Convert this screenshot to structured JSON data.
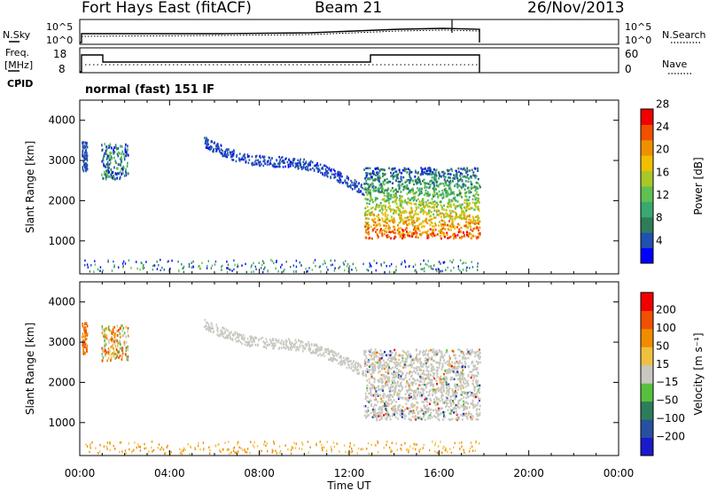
{
  "header": {
    "station": "Fort Hays East (fitACF)",
    "beam": "Beam 21",
    "date": "26/Nov/2013"
  },
  "noise_panel": {
    "left_label": "N.Sky",
    "right_label": "N.Search",
    "left_ticks": [
      "10^5",
      "10^0"
    ],
    "right_ticks": [
      "10^5",
      "10^0"
    ]
  },
  "freq_panel": {
    "left_label_line1": "Freq.",
    "left_label_line2": "[MHz]",
    "right_label": "Nave",
    "left_ticks": [
      "18",
      "8"
    ],
    "right_ticks": [
      "60",
      "0"
    ]
  },
  "cpid": {
    "label": "CPID",
    "value": "normal (fast) 151 IF"
  },
  "chart_data": [
    {
      "type": "heatmap",
      "name": "Power",
      "ylabel": "Slant Range [km]",
      "xlabel": "",
      "ylim": [
        180,
        4500
      ],
      "yticks": [
        "1000",
        "2000",
        "3000",
        "4000"
      ],
      "colorbar_label": "Power [dB]",
      "colorbar_ticks": [
        "4",
        "8",
        "12",
        "16",
        "20",
        "24",
        "28"
      ],
      "colorbar_colors": [
        "#0000ff",
        "#2050b0",
        "#2e7d5a",
        "#3aa870",
        "#60c050",
        "#a8c828",
        "#f0c000",
        "#f09000",
        "#f05000",
        "#f00000"
      ]
    },
    {
      "type": "heatmap",
      "name": "Velocity",
      "ylabel": "Slant Range [km]",
      "xlabel": "Time UT",
      "ylim": [
        180,
        4500
      ],
      "yticks": [
        "1000",
        "2000",
        "3000",
        "4000"
      ],
      "xticks": [
        "00:00",
        "04:00",
        "08:00",
        "12:00",
        "16:00",
        "20:00",
        "00:00"
      ],
      "colorbar_label": "Velocity [m s⁻¹]",
      "colorbar_ticks": [
        "200",
        "100",
        "50",
        "15",
        "−15",
        "−50",
        "−100",
        "−200"
      ],
      "colorbar_colors": [
        "#1a1acc",
        "#2850a0",
        "#2e7d5a",
        "#58c040",
        "#c8c8c0",
        "#f0c040",
        "#f08c00",
        "#f05000",
        "#f00000"
      ]
    }
  ]
}
